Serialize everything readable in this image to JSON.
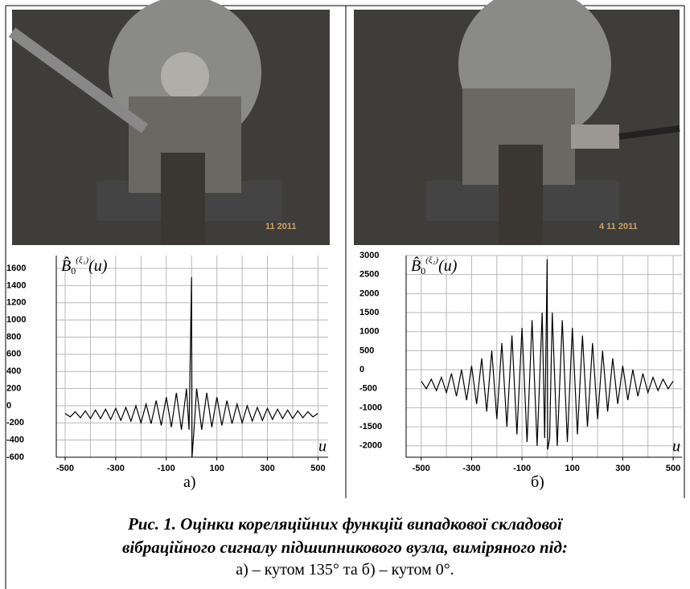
{
  "photos": [
    {
      "stamp": "11 2011"
    },
    {
      "stamp": "4 11 2011"
    }
  ],
  "chart_data": [
    {
      "type": "line",
      "color": "#000000",
      "ylabel": {
        "main": "B̂",
        "sub": "0",
        "sup": "(ξ₁)",
        "arg": "(u)"
      },
      "xlabel": "u",
      "xlim": [
        -535,
        540
      ],
      "ylim": [
        -600,
        1750
      ],
      "xticks": [
        -500,
        -300,
        -100,
        100,
        300,
        500
      ],
      "x_grid": [
        -500,
        -400,
        -300,
        -200,
        -100,
        0,
        100,
        200,
        300,
        400,
        500
      ],
      "yticks": [
        1600,
        1400,
        1200,
        1000,
        800,
        600,
        400,
        200,
        0,
        -200,
        -400,
        -600
      ],
      "grid": true,
      "x": [
        -500,
        -480,
        -460,
        -440,
        -420,
        -400,
        -380,
        -360,
        -340,
        -320,
        -300,
        -280,
        -260,
        -240,
        -220,
        -200,
        -180,
        -160,
        -140,
        -120,
        -100,
        -80,
        -60,
        -40,
        -20,
        -10,
        0,
        2,
        10,
        20,
        40,
        60,
        80,
        100,
        120,
        140,
        160,
        180,
        200,
        220,
        240,
        260,
        280,
        300,
        320,
        340,
        360,
        380,
        400,
        420,
        440,
        460,
        480,
        500
      ],
      "values": [
        -90,
        -130,
        -70,
        -140,
        -60,
        -150,
        -50,
        -150,
        -40,
        -160,
        -30,
        -170,
        -20,
        -180,
        0,
        -200,
        20,
        -210,
        60,
        -230,
        100,
        -250,
        150,
        -280,
        200,
        -280,
        1500,
        -600,
        -260,
        200,
        -280,
        150,
        -250,
        100,
        -230,
        60,
        -210,
        20,
        -200,
        0,
        -180,
        -20,
        -170,
        -30,
        -160,
        -40,
        -150,
        -50,
        -150,
        -60,
        -140,
        -70,
        -130,
        -90
      ]
    },
    {
      "type": "line",
      "color": "#000000",
      "ylabel": {
        "main": "B̂",
        "sub": "0",
        "sup": "(ξ₂)",
        "arg": "(u)"
      },
      "xlabel": "u",
      "xlim": [
        -560,
        535
      ],
      "ylim": [
        -2300,
        3000
      ],
      "xticks": [
        -500,
        -300,
        -100,
        100,
        300,
        500
      ],
      "x_grid": [
        -500,
        -400,
        -300,
        -200,
        -100,
        0,
        100,
        200,
        300,
        400,
        500
      ],
      "yticks": [
        3000,
        2500,
        2000,
        1500,
        1000,
        500,
        0,
        -500,
        -1000,
        -1500,
        -2000
      ],
      "grid": true,
      "x": [
        -500,
        -480,
        -460,
        -440,
        -420,
        -400,
        -380,
        -360,
        -340,
        -320,
        -300,
        -280,
        -260,
        -240,
        -220,
        -200,
        -180,
        -160,
        -140,
        -120,
        -100,
        -80,
        -60,
        -40,
        -20,
        -10,
        0,
        2,
        10,
        20,
        40,
        60,
        80,
        100,
        120,
        140,
        160,
        180,
        200,
        220,
        240,
        260,
        280,
        300,
        320,
        340,
        360,
        380,
        400,
        420,
        440,
        460,
        480,
        500
      ],
      "values": [
        -300,
        -500,
        -250,
        -550,
        -200,
        -600,
        -100,
        -700,
        0,
        -800,
        100,
        -900,
        300,
        -1100,
        500,
        -1300,
        700,
        -1500,
        900,
        -1700,
        1100,
        -1900,
        1300,
        -2000,
        1500,
        -1800,
        2900,
        -2100,
        -1800,
        1500,
        -2000,
        1300,
        -1900,
        1100,
        -1700,
        900,
        -1500,
        700,
        -1300,
        500,
        -1100,
        300,
        -900,
        100,
        -800,
        0,
        -700,
        -100,
        -600,
        -200,
        -550,
        -250,
        -500,
        -300
      ]
    }
  ],
  "panel_labels": [
    "а)",
    "б)"
  ],
  "caption": [
    "Рис. 1. Оцінки кореляційних функцій випадкової складової",
    "вібраційного сигналу підшипникового вузла, виміряного під:",
    "а) – кутом 135° та б) – кутом 0°."
  ]
}
